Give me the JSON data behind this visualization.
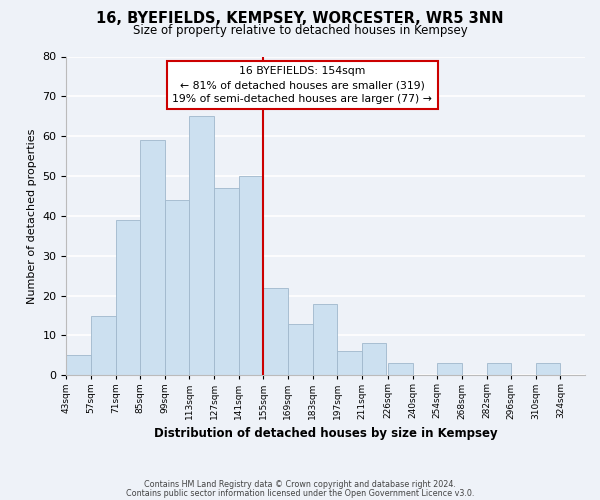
{
  "title": "16, BYEFIELDS, KEMPSEY, WORCESTER, WR5 3NN",
  "subtitle": "Size of property relative to detached houses in Kempsey",
  "xlabel": "Distribution of detached houses by size in Kempsey",
  "ylabel": "Number of detached properties",
  "bar_color": "#cce0f0",
  "bar_edge_color": "#a0b8cc",
  "background_color": "#eef2f8",
  "grid_color": "#ffffff",
  "bins": [
    43,
    57,
    71,
    85,
    99,
    113,
    127,
    141,
    155,
    169,
    183,
    197,
    211,
    226,
    240,
    254,
    268,
    282,
    296,
    310,
    324,
    338
  ],
  "bin_labels": [
    "43sqm",
    "57sqm",
    "71sqm",
    "85sqm",
    "99sqm",
    "113sqm",
    "127sqm",
    "141sqm",
    "155sqm",
    "169sqm",
    "183sqm",
    "197sqm",
    "211sqm",
    "226sqm",
    "240sqm",
    "254sqm",
    "268sqm",
    "282sqm",
    "296sqm",
    "310sqm",
    "324sqm"
  ],
  "counts": [
    5,
    15,
    39,
    59,
    44,
    65,
    47,
    50,
    22,
    13,
    18,
    6,
    8,
    3,
    0,
    3,
    0,
    3,
    0,
    3,
    0
  ],
  "property_line_x": 155,
  "property_line_color": "#cc0000",
  "annotation_box_color": "#ffffff",
  "annotation_box_edge": "#cc0000",
  "annotation_title": "16 BYEFIELDS: 154sqm",
  "annotation_line1": "← 81% of detached houses are smaller (319)",
  "annotation_line2": "19% of semi-detached houses are larger (77) →",
  "footer1": "Contains HM Land Registry data © Crown copyright and database right 2024.",
  "footer2": "Contains public sector information licensed under the Open Government Licence v3.0.",
  "ylim": [
    0,
    80
  ],
  "xlim": [
    43,
    338
  ]
}
